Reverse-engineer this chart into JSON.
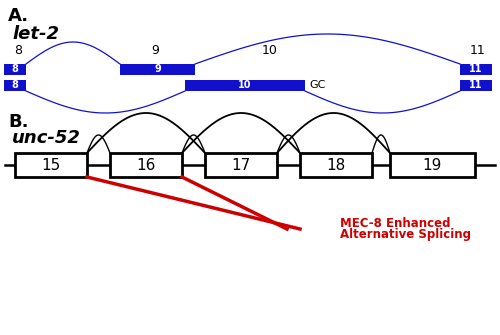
{
  "panel_A_label": "A.",
  "panel_B_label": "B.",
  "let2_label": "let-2",
  "unc52_label": "unc-52",
  "blue_color": "#1111CC",
  "black_color": "#000000",
  "red_color": "#CC0000",
  "white_color": "#FFFFFF",
  "bg_color": "#FFFFFF",
  "mec8_text_line1": "MEC-8 Enhanced",
  "mec8_text_line2": "Alternative Splicing",
  "gc_label": "GC",
  "unc52_exons": [
    "15",
    "16",
    "17",
    "18",
    "19"
  ]
}
